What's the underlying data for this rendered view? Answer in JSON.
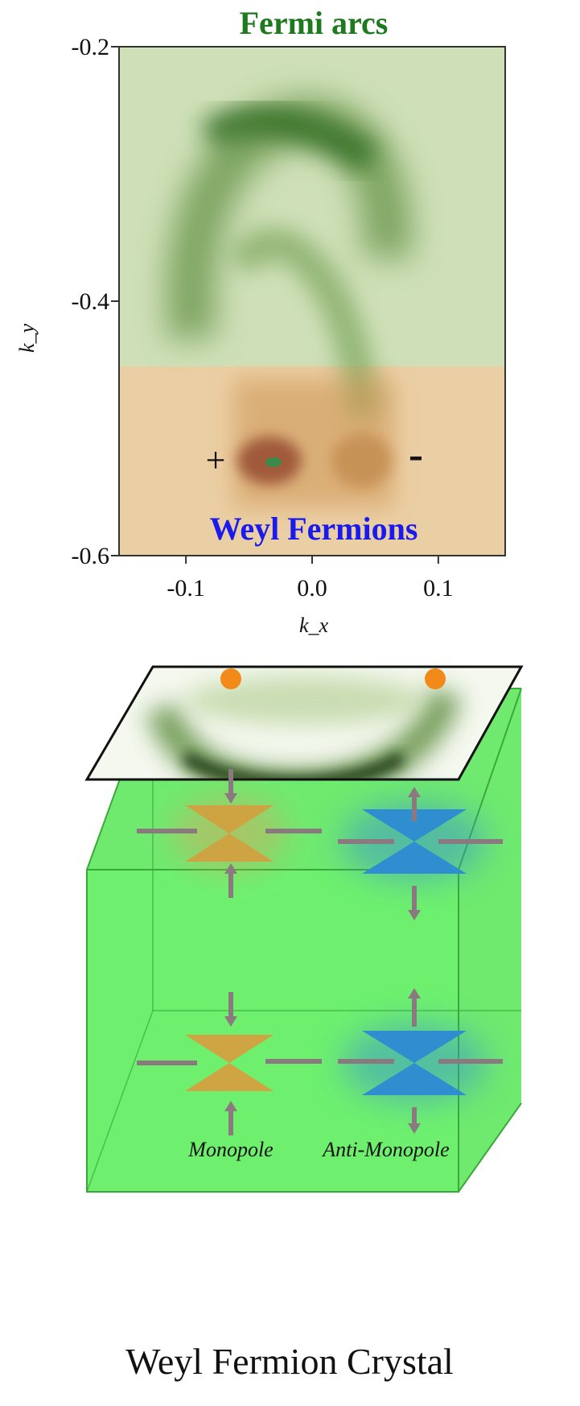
{
  "top_panel": {
    "title": "Fermi arcs",
    "annotation": "Weyl Fermions",
    "plus_label": "+",
    "minus_label": "-",
    "x_label": "k_x",
    "y_label": "k_y",
    "xlim": [
      -0.153,
      0.153
    ],
    "ylim": [
      -0.6,
      -0.2
    ],
    "xticks": [
      -0.1,
      {
        "value": 0,
        "label": "0.0"
      },
      0.1
    ],
    "yticks": [
      -0.2,
      -0.4,
      -0.6
    ]
  },
  "bottom_panel": {
    "left_label": "Monopole",
    "right_label": "Anti-Monopole",
    "caption": "Weyl Fermion Crystal"
  }
}
